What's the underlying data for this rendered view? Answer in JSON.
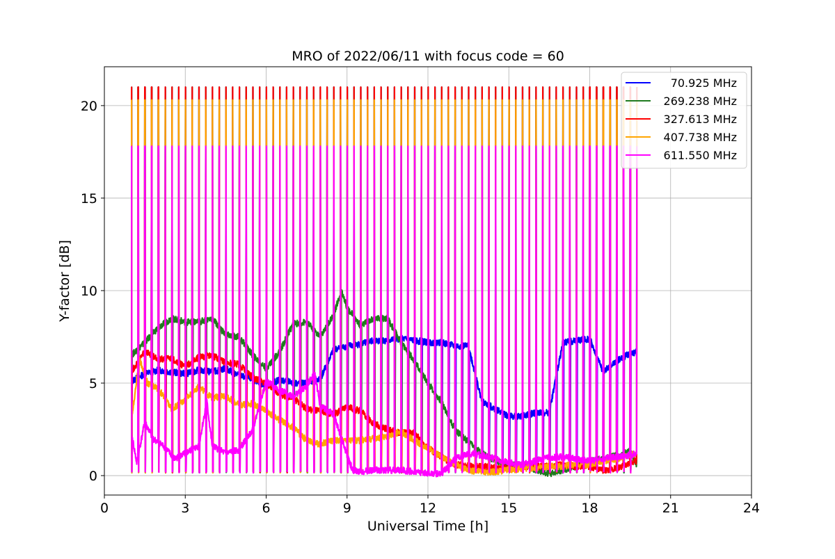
{
  "chart_data": {
    "type": "line",
    "title": "MRO of 2022/06/11 with focus code = 60",
    "xlabel": "Universal Time [h]",
    "ylabel": "Y-factor [dB]",
    "xlim": [
      0,
      24
    ],
    "ylim": [
      -1.05,
      22.1
    ],
    "xticks": [
      0,
      3,
      6,
      9,
      12,
      15,
      18,
      21,
      24
    ],
    "yticks": [
      0,
      5,
      10,
      15,
      20
    ],
    "grid": true,
    "legend_position": "top-right",
    "calibration_spikes": {
      "t_start": 1.0,
      "t_end": 19.75,
      "period_h": 0.25,
      "peak_values": {
        "70.925 MHz": 21.0,
        "269.238 MHz": 21.0,
        "327.613 MHz": 21.0,
        "407.738 MHz": 20.3,
        "611.550 MHz": 17.8
      }
    },
    "series": [
      {
        "name": "70.925 MHz",
        "color": "#0000ff",
        "x": [
          1.0,
          1.5,
          2.0,
          2.5,
          3.0,
          3.5,
          4.0,
          4.5,
          5.0,
          5.5,
          6.0,
          6.5,
          7.0,
          7.5,
          8.0,
          8.5,
          9.0,
          9.5,
          10.0,
          10.5,
          11.0,
          11.5,
          12.0,
          12.5,
          13.0,
          13.5,
          14.0,
          14.5,
          15.0,
          15.5,
          16.0,
          16.5,
          17.0,
          17.5,
          18.0,
          18.5,
          19.0,
          19.5,
          19.75
        ],
        "y": [
          5.1,
          5.5,
          5.7,
          5.6,
          5.5,
          5.7,
          5.6,
          5.8,
          5.4,
          5.2,
          4.8,
          5.2,
          5.0,
          5.0,
          5.2,
          6.8,
          7.0,
          7.1,
          7.3,
          7.3,
          7.4,
          7.3,
          7.2,
          7.2,
          7.0,
          7.0,
          4.0,
          3.6,
          3.2,
          3.2,
          3.4,
          3.4,
          7.2,
          7.3,
          7.4,
          5.6,
          6.2,
          6.6,
          6.7
        ]
      },
      {
        "name": "269.238 MHz",
        "color": "#1f7a1f",
        "x": [
          1.0,
          1.5,
          2.0,
          2.5,
          3.0,
          3.5,
          4.0,
          4.5,
          5.0,
          5.5,
          6.0,
          6.5,
          7.0,
          7.5,
          8.0,
          8.5,
          8.8,
          9.0,
          9.5,
          10.0,
          10.5,
          11.0,
          11.5,
          12.0,
          12.5,
          13.0,
          13.5,
          14.0,
          14.5,
          15.0,
          15.5,
          16.0,
          16.5,
          17.0,
          17.5,
          18.0,
          18.5,
          19.0,
          19.5,
          19.75
        ],
        "y": [
          6.5,
          7.2,
          8.0,
          8.5,
          8.3,
          8.3,
          8.5,
          7.6,
          7.5,
          6.5,
          5.8,
          6.7,
          8.2,
          8.3,
          7.5,
          8.7,
          10.0,
          9.1,
          8.1,
          8.5,
          8.5,
          7.2,
          6.2,
          5.0,
          4.0,
          2.5,
          1.8,
          1.2,
          0.8,
          0.6,
          0.6,
          0.3,
          0.1,
          0.3,
          0.5,
          0.8,
          0.9,
          1.1,
          1.3,
          0.6
        ]
      },
      {
        "name": "327.613 MHz",
        "color": "#ff0000",
        "x": [
          1.0,
          1.5,
          2.0,
          2.5,
          3.0,
          3.5,
          4.0,
          4.5,
          5.0,
          5.5,
          6.0,
          6.5,
          7.0,
          7.5,
          8.0,
          8.5,
          9.0,
          9.5,
          10.0,
          10.5,
          11.0,
          11.5,
          12.0,
          12.5,
          13.0,
          13.5,
          14.0,
          14.5,
          15.0,
          15.5,
          16.0,
          16.5,
          17.0,
          17.5,
          18.0,
          18.5,
          19.0,
          19.5,
          19.75
        ],
        "y": [
          5.6,
          6.7,
          6.3,
          6.3,
          5.9,
          6.4,
          6.5,
          6.1,
          6.0,
          5.3,
          5.0,
          4.4,
          4.2,
          3.6,
          3.5,
          3.3,
          3.7,
          3.5,
          2.8,
          2.5,
          2.3,
          2.3,
          1.5,
          1.0,
          0.6,
          0.5,
          0.5,
          0.4,
          0.4,
          0.5,
          0.5,
          0.5,
          0.6,
          0.5,
          0.5,
          0.3,
          0.4,
          0.7,
          0.8
        ]
      },
      {
        "name": "407.738 MHz",
        "color": "#ffa500",
        "x": [
          1.0,
          1.3,
          1.6,
          2.0,
          2.5,
          3.0,
          3.5,
          4.0,
          4.5,
          5.0,
          5.5,
          6.0,
          6.5,
          7.0,
          7.5,
          8.0,
          8.5,
          9.0,
          9.5,
          10.0,
          10.5,
          11.0,
          11.5,
          12.0,
          12.5,
          13.0,
          13.5,
          14.0,
          14.5,
          15.0,
          15.5,
          16.0,
          16.5,
          17.0,
          17.5,
          18.0,
          18.5,
          19.0,
          19.5,
          19.75
        ],
        "y": [
          3.0,
          6.3,
          5.0,
          4.7,
          3.6,
          4.1,
          4.8,
          4.2,
          4.3,
          3.8,
          3.9,
          3.5,
          3.0,
          2.6,
          1.9,
          1.7,
          1.9,
          1.9,
          1.9,
          2.0,
          2.1,
          2.4,
          1.9,
          1.5,
          1.0,
          0.6,
          0.3,
          0.2,
          0.2,
          0.3,
          0.4,
          0.4,
          0.5,
          0.5,
          0.6,
          0.6,
          0.8,
          0.9,
          1.1,
          1.2
        ]
      },
      {
        "name": "611.550 MHz",
        "color": "#ff00ff",
        "x": [
          1.0,
          1.2,
          1.5,
          1.8,
          2.2,
          2.6,
          3.0,
          3.5,
          3.8,
          4.0,
          4.5,
          5.0,
          5.5,
          6.0,
          6.5,
          7.0,
          7.5,
          7.8,
          8.0,
          8.5,
          9.0,
          9.2,
          9.5,
          10.0,
          10.5,
          11.0,
          11.5,
          12.0,
          12.5,
          13.0,
          13.5,
          14.0,
          14.5,
          15.0,
          15.5,
          16.0,
          16.5,
          17.0,
          17.5,
          18.0,
          18.5,
          19.0,
          19.5,
          19.75
        ],
        "y": [
          2.3,
          0.7,
          2.9,
          2.0,
          1.6,
          0.9,
          1.2,
          1.6,
          4.0,
          1.6,
          1.2,
          1.4,
          2.5,
          5.1,
          4.6,
          4.3,
          4.8,
          5.6,
          3.8,
          3.3,
          1.1,
          0.3,
          0.2,
          0.3,
          0.3,
          0.3,
          0.2,
          0.1,
          0.1,
          0.9,
          1.2,
          1.1,
          0.9,
          0.7,
          0.6,
          0.8,
          1.0,
          1.0,
          0.9,
          0.8,
          0.9,
          1.0,
          1.1,
          1.2
        ]
      }
    ]
  }
}
